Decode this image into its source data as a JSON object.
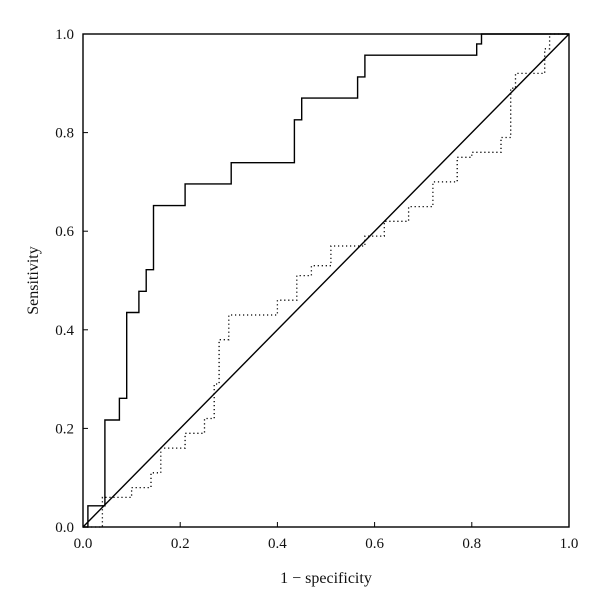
{
  "chart_data": {
    "type": "line",
    "title": "",
    "xlabel": "1 − specificity",
    "ylabel": "Sensitivity",
    "xlim": [
      0,
      1
    ],
    "ylim": [
      0,
      1
    ],
    "grid": false,
    "legend": "none",
    "x_ticks": [
      "0.0",
      "0.2",
      "0.4",
      "0.6",
      "0.8",
      "1.0"
    ],
    "y_ticks": [
      "0.0",
      "0.2",
      "0.4",
      "0.6",
      "0.8",
      "1.0"
    ],
    "colors": {
      "line": "#000000",
      "frame": "#000000"
    },
    "series": [
      {
        "style": "solid",
        "step": true,
        "x": [
          0.0,
          0.01,
          0.01,
          0.045,
          0.045,
          0.075,
          0.075,
          0.09,
          0.09,
          0.115,
          0.115,
          0.13,
          0.13,
          0.145,
          0.145,
          0.21,
          0.21,
          0.305,
          0.305,
          0.435,
          0.435,
          0.45,
          0.45,
          0.565,
          0.565,
          0.58,
          0.58,
          0.81,
          0.81,
          0.82,
          0.82,
          1.0
        ],
        "y": [
          0.0,
          0.0,
          0.043,
          0.043,
          0.217,
          0.217,
          0.261,
          0.261,
          0.435,
          0.435,
          0.478,
          0.478,
          0.522,
          0.522,
          0.652,
          0.652,
          0.696,
          0.696,
          0.739,
          0.739,
          0.826,
          0.826,
          0.87,
          0.87,
          0.913,
          0.913,
          0.957,
          0.957,
          0.98,
          0.98,
          1.0,
          1.0
        ]
      },
      {
        "style": "solid",
        "step": false,
        "x": [
          0.0,
          1.0
        ],
        "y": [
          0.0,
          1.0
        ]
      },
      {
        "style": "dotted",
        "step": true,
        "x": [
          0.0,
          0.04,
          0.04,
          0.1,
          0.1,
          0.14,
          0.14,
          0.16,
          0.16,
          0.21,
          0.21,
          0.25,
          0.25,
          0.27,
          0.27,
          0.28,
          0.28,
          0.3,
          0.3,
          0.4,
          0.4,
          0.44,
          0.44,
          0.47,
          0.47,
          0.51,
          0.51,
          0.58,
          0.58,
          0.62,
          0.62,
          0.67,
          0.67,
          0.72,
          0.72,
          0.77,
          0.77,
          0.8,
          0.8,
          0.86,
          0.86,
          0.88,
          0.88,
          0.89,
          0.89,
          0.95,
          0.95,
          0.96,
          0.96,
          1.0
        ],
        "y": [
          0.0,
          0.0,
          0.06,
          0.06,
          0.08,
          0.08,
          0.11,
          0.11,
          0.16,
          0.16,
          0.19,
          0.19,
          0.22,
          0.22,
          0.29,
          0.29,
          0.38,
          0.38,
          0.43,
          0.43,
          0.46,
          0.46,
          0.51,
          0.51,
          0.53,
          0.53,
          0.57,
          0.57,
          0.59,
          0.59,
          0.62,
          0.62,
          0.65,
          0.65,
          0.7,
          0.7,
          0.75,
          0.75,
          0.76,
          0.76,
          0.79,
          0.79,
          0.89,
          0.89,
          0.92,
          0.92,
          0.97,
          0.97,
          1.0,
          1.0
        ]
      }
    ]
  }
}
